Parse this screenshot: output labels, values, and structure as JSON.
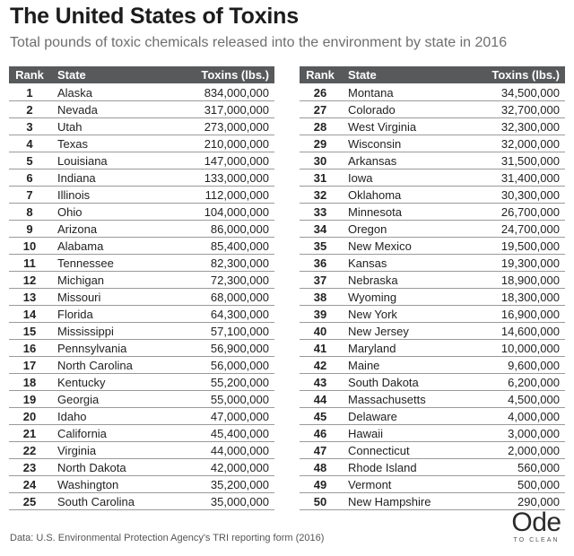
{
  "title": "The United States of Toxins",
  "subtitle": "Total pounds of toxic chemicals released into the environment by state in 2016",
  "headers": {
    "rank": "Rank",
    "state": "State",
    "toxins": "Toxins (lbs.)"
  },
  "rows": [
    {
      "rank": "1",
      "state": "Alaska",
      "toxins": "834,000,000"
    },
    {
      "rank": "2",
      "state": "Nevada",
      "toxins": "317,000,000"
    },
    {
      "rank": "3",
      "state": "Utah",
      "toxins": "273,000,000"
    },
    {
      "rank": "4",
      "state": "Texas",
      "toxins": "210,000,000"
    },
    {
      "rank": "5",
      "state": "Louisiana",
      "toxins": "147,000,000"
    },
    {
      "rank": "6",
      "state": "Indiana",
      "toxins": "133,000,000"
    },
    {
      "rank": "7",
      "state": "Illinois",
      "toxins": "112,000,000"
    },
    {
      "rank": "8",
      "state": "Ohio",
      "toxins": "104,000,000"
    },
    {
      "rank": "9",
      "state": "Arizona",
      "toxins": "86,000,000"
    },
    {
      "rank": "10",
      "state": "Alabama",
      "toxins": "85,400,000"
    },
    {
      "rank": "11",
      "state": "Tennessee",
      "toxins": "82,300,000"
    },
    {
      "rank": "12",
      "state": "Michigan",
      "toxins": "72,300,000"
    },
    {
      "rank": "13",
      "state": "Missouri",
      "toxins": "68,000,000"
    },
    {
      "rank": "14",
      "state": "Florida",
      "toxins": "64,300,000"
    },
    {
      "rank": "15",
      "state": "Mississippi",
      "toxins": "57,100,000"
    },
    {
      "rank": "16",
      "state": "Pennsylvania",
      "toxins": "56,900,000"
    },
    {
      "rank": "17",
      "state": "North Carolina",
      "toxins": "56,000,000"
    },
    {
      "rank": "18",
      "state": "Kentucky",
      "toxins": "55,200,000"
    },
    {
      "rank": "19",
      "state": "Georgia",
      "toxins": "55,000,000"
    },
    {
      "rank": "20",
      "state": "Idaho",
      "toxins": "47,000,000"
    },
    {
      "rank": "21",
      "state": "California",
      "toxins": "45,400,000"
    },
    {
      "rank": "22",
      "state": "Virginia",
      "toxins": "44,000,000"
    },
    {
      "rank": "23",
      "state": "North Dakota",
      "toxins": "42,000,000"
    },
    {
      "rank": "24",
      "state": "Washington",
      "toxins": "35,200,000"
    },
    {
      "rank": "25",
      "state": "South Carolina",
      "toxins": "35,000,000"
    },
    {
      "rank": "26",
      "state": "Montana",
      "toxins": "34,500,000"
    },
    {
      "rank": "27",
      "state": "Colorado",
      "toxins": "32,700,000"
    },
    {
      "rank": "28",
      "state": "West Virginia",
      "toxins": "32,300,000"
    },
    {
      "rank": "29",
      "state": "Wisconsin",
      "toxins": "32,000,000"
    },
    {
      "rank": "30",
      "state": "Arkansas",
      "toxins": "31,500,000"
    },
    {
      "rank": "31",
      "state": "Iowa",
      "toxins": "31,400,000"
    },
    {
      "rank": "32",
      "state": "Oklahoma",
      "toxins": "30,300,000"
    },
    {
      "rank": "33",
      "state": "Minnesota",
      "toxins": "26,700,000"
    },
    {
      "rank": "34",
      "state": "Oregon",
      "toxins": "24,700,000"
    },
    {
      "rank": "35",
      "state": "New Mexico",
      "toxins": "19,500,000"
    },
    {
      "rank": "36",
      "state": "Kansas",
      "toxins": "19,300,000"
    },
    {
      "rank": "37",
      "state": "Nebraska",
      "toxins": "18,900,000"
    },
    {
      "rank": "38",
      "state": "Wyoming",
      "toxins": "18,300,000"
    },
    {
      "rank": "39",
      "state": "New York",
      "toxins": "16,900,000"
    },
    {
      "rank": "40",
      "state": "New Jersey",
      "toxins": "14,600,000"
    },
    {
      "rank": "41",
      "state": "Maryland",
      "toxins": "10,000,000"
    },
    {
      "rank": "42",
      "state": "Maine",
      "toxins": "9,600,000"
    },
    {
      "rank": "43",
      "state": "South Dakota",
      "toxins": "6,200,000"
    },
    {
      "rank": "44",
      "state": "Massachusetts",
      "toxins": "4,500,000"
    },
    {
      "rank": "45",
      "state": "Delaware",
      "toxins": "4,000,000"
    },
    {
      "rank": "46",
      "state": "Hawaii",
      "toxins": "3,000,000"
    },
    {
      "rank": "47",
      "state": "Connecticut",
      "toxins": "2,000,000"
    },
    {
      "rank": "48",
      "state": "Rhode Island",
      "toxins": "560,000"
    },
    {
      "rank": "49",
      "state": "Vermont",
      "toxins": "500,000"
    },
    {
      "rank": "50",
      "state": "New Hampshire",
      "toxins": "290,000"
    }
  ],
  "source": "Data: U.S. Environmental Protection Agency's TRI reporting form (2016)",
  "logo": {
    "word": "Ode",
    "tagline": "TO CLEAN"
  },
  "colors": {
    "header_bg": "#58595b",
    "header_text": "#ffffff",
    "row_divider": "#9a9a9a",
    "title": "#1c1c1c",
    "subtitle": "#6e6e6e"
  }
}
